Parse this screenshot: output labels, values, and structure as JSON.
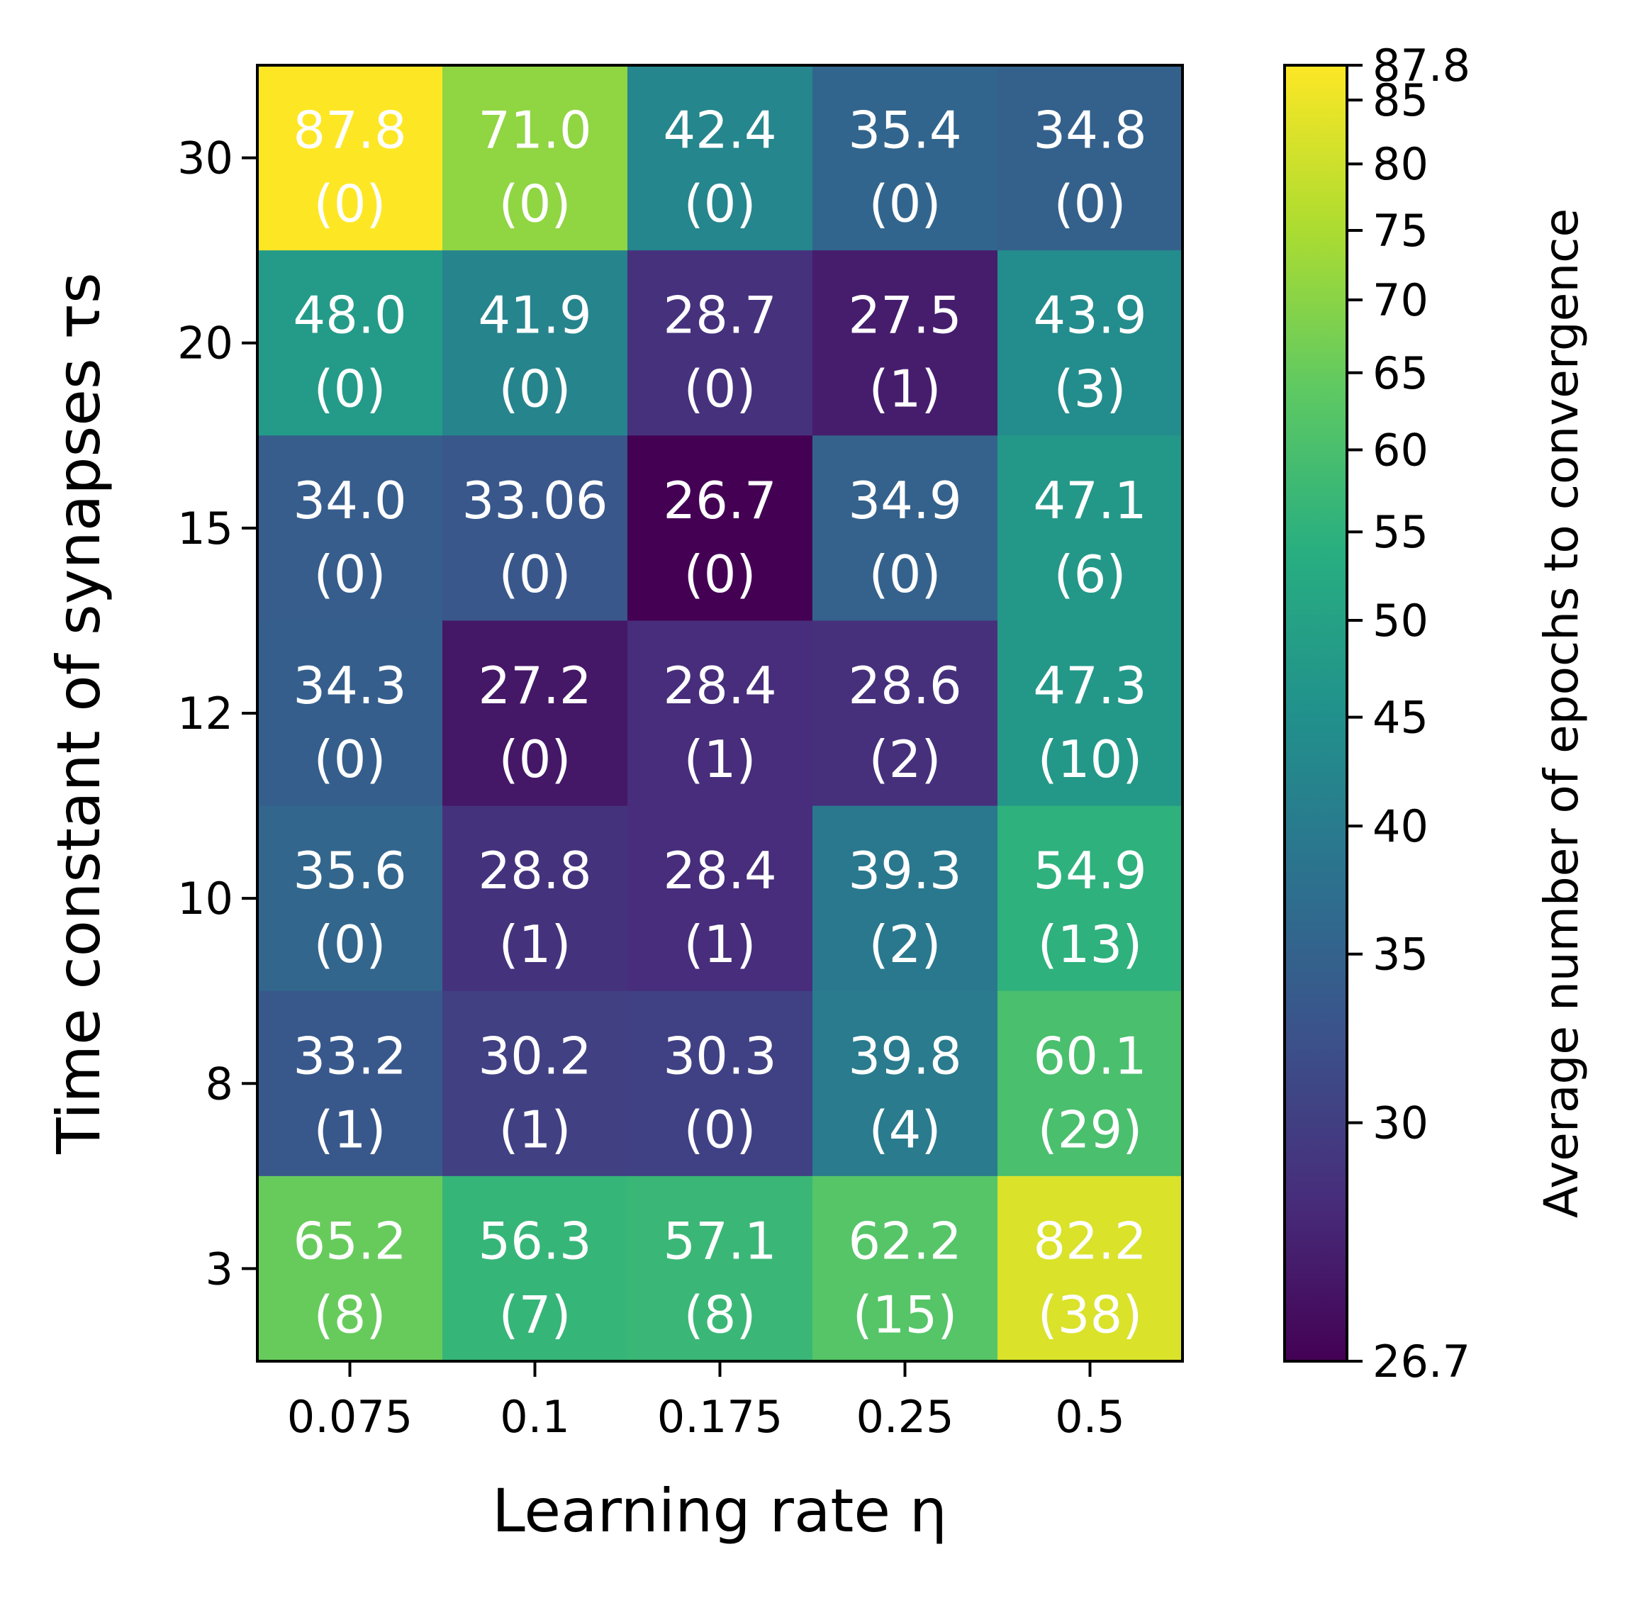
{
  "chart_data": {
    "type": "heatmap",
    "xlabel": "Learning rate η",
    "ylabel": "Time constant of synapses τs",
    "x_categories": [
      "0.075",
      "0.1",
      "0.175",
      "0.25",
      "0.5"
    ],
    "y_categories": [
      "30",
      "20",
      "15",
      "12",
      "10",
      "8",
      "3"
    ],
    "values": [
      [
        87.8,
        71.0,
        42.4,
        35.4,
        34.8
      ],
      [
        48.0,
        41.9,
        28.7,
        27.5,
        43.9
      ],
      [
        34.0,
        33.06,
        26.7,
        34.9,
        47.1
      ],
      [
        34.3,
        27.2,
        28.4,
        28.6,
        47.3
      ],
      [
        35.6,
        28.8,
        28.4,
        39.3,
        54.9
      ],
      [
        33.2,
        30.2,
        30.3,
        39.8,
        60.1
      ],
      [
        65.2,
        56.3,
        57.1,
        62.2,
        82.2
      ]
    ],
    "value_labels": [
      [
        "87.8",
        "71.0",
        "42.4",
        "35.4",
        "34.8"
      ],
      [
        "48.0",
        "41.9",
        "28.7",
        "27.5",
        "43.9"
      ],
      [
        "34.0",
        "33.06",
        "26.7",
        "34.9",
        "47.1"
      ],
      [
        "34.3",
        "27.2",
        "28.4",
        "28.6",
        "47.3"
      ],
      [
        "35.6",
        "28.8",
        "28.4",
        "39.3",
        "54.9"
      ],
      [
        "33.2",
        "30.2",
        "30.3",
        "39.8",
        "60.1"
      ],
      [
        "65.2",
        "56.3",
        "57.1",
        "62.2",
        "82.2"
      ]
    ],
    "counts": [
      [
        "(0)",
        "(0)",
        "(0)",
        "(0)",
        "(0)"
      ],
      [
        "(0)",
        "(0)",
        "(0)",
        "(1)",
        "(3)"
      ],
      [
        "(0)",
        "(0)",
        "(0)",
        "(0)",
        "(6)"
      ],
      [
        "(0)",
        "(0)",
        "(1)",
        "(2)",
        "(10)"
      ],
      [
        "(0)",
        "(1)",
        "(1)",
        "(2)",
        "(13)"
      ],
      [
        "(1)",
        "(1)",
        "(0)",
        "(4)",
        "(29)"
      ],
      [
        "(8)",
        "(7)",
        "(8)",
        "(15)",
        "(38)"
      ]
    ],
    "colorbar": {
      "label": "Average number of epochs to convergence",
      "colormap": "viridis",
      "min": 26.7,
      "max": 87.8,
      "scale": "nonlinear",
      "ticks": [
        "26.7",
        "30",
        "35",
        "40",
        "45",
        "50",
        "55",
        "60",
        "65",
        "70",
        "75",
        "80",
        "85",
        "87.8"
      ]
    }
  }
}
